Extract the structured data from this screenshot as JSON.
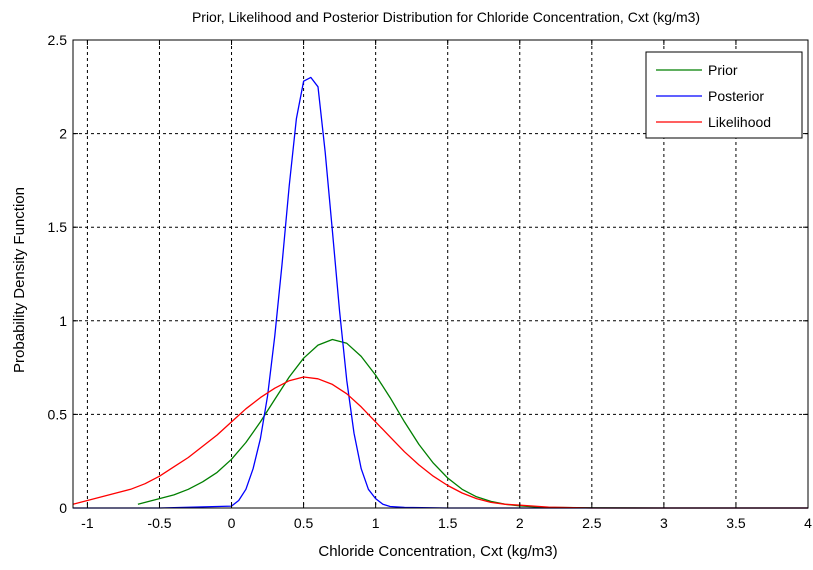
{
  "chart_data": {
    "type": "line",
    "title": "Prior, Likelihood and Posterior Distribution for Chloride Concentration, Cxt (kg/m3)",
    "xlabel": "Chloride Concentration, Cxt (kg/m3)",
    "ylabel": "Probability Density Function",
    "xlim": [
      -1.1,
      4
    ],
    "ylim": [
      0,
      2.5
    ],
    "xticks": [
      -1,
      -0.5,
      0,
      0.5,
      1,
      1.5,
      2,
      2.5,
      3,
      3.5,
      4
    ],
    "xtick_labels": [
      "-1",
      "-0.5",
      "0",
      "0.5",
      "1",
      "1.5",
      "2",
      "2.5",
      "3",
      "3.5",
      "4"
    ],
    "yticks": [
      0,
      0.5,
      1,
      1.5,
      2,
      2.5
    ],
    "ytick_labels": [
      "0",
      "0.5",
      "1",
      "1.5",
      "2",
      "2.5"
    ],
    "grid": true,
    "legend_position": "top-right",
    "series": [
      {
        "name": "Prior",
        "color": "#007f00",
        "x": [
          -0.65,
          -0.5,
          -0.4,
          -0.3,
          -0.2,
          -0.1,
          0,
          0.1,
          0.2,
          0.3,
          0.4,
          0.5,
          0.6,
          0.7,
          0.8,
          0.9,
          1.0,
          1.1,
          1.2,
          1.3,
          1.4,
          1.5,
          1.6,
          1.7,
          1.8,
          1.9,
          2.0,
          2.1,
          2.2,
          2.5,
          3.0,
          3.5,
          4.0
        ],
        "y": [
          0.02,
          0.05,
          0.07,
          0.1,
          0.14,
          0.19,
          0.26,
          0.35,
          0.46,
          0.58,
          0.7,
          0.8,
          0.87,
          0.9,
          0.88,
          0.81,
          0.71,
          0.59,
          0.46,
          0.34,
          0.24,
          0.16,
          0.1,
          0.06,
          0.035,
          0.02,
          0.012,
          0.006,
          0.003,
          0.001,
          0.0,
          0.0,
          0.0
        ]
      },
      {
        "name": "Posterior",
        "color": "#0000ff",
        "x": [
          -1.1,
          -0.5,
          0.0,
          0.05,
          0.1,
          0.15,
          0.2,
          0.25,
          0.3,
          0.35,
          0.4,
          0.45,
          0.5,
          0.55,
          0.6,
          0.65,
          0.7,
          0.75,
          0.8,
          0.85,
          0.9,
          0.95,
          1.0,
          1.05,
          1.1,
          1.2,
          1.5,
          2.0,
          3.0,
          4.0
        ],
        "y": [
          0,
          0,
          0.01,
          0.04,
          0.1,
          0.21,
          0.37,
          0.6,
          0.92,
          1.3,
          1.72,
          2.08,
          2.28,
          2.3,
          2.25,
          1.9,
          1.48,
          1.05,
          0.68,
          0.4,
          0.21,
          0.1,
          0.05,
          0.02,
          0.008,
          0.003,
          0.0,
          0.0,
          0.0,
          0.0
        ]
      },
      {
        "name": "Likelihood",
        "color": "#ff0000",
        "x": [
          -1.1,
          -1.0,
          -0.9,
          -0.8,
          -0.7,
          -0.6,
          -0.5,
          -0.4,
          -0.3,
          -0.2,
          -0.1,
          0,
          0.1,
          0.2,
          0.3,
          0.4,
          0.5,
          0.6,
          0.7,
          0.8,
          0.9,
          1.0,
          1.1,
          1.2,
          1.3,
          1.4,
          1.5,
          1.6,
          1.7,
          1.8,
          1.9,
          2.0,
          2.1,
          2.2,
          2.5,
          3.0,
          3.5,
          4.0
        ],
        "y": [
          0.02,
          0.04,
          0.06,
          0.08,
          0.1,
          0.13,
          0.17,
          0.22,
          0.27,
          0.33,
          0.39,
          0.46,
          0.53,
          0.59,
          0.64,
          0.68,
          0.7,
          0.69,
          0.66,
          0.61,
          0.54,
          0.46,
          0.38,
          0.3,
          0.23,
          0.17,
          0.12,
          0.08,
          0.05,
          0.03,
          0.02,
          0.015,
          0.01,
          0.005,
          0.0,
          0.0,
          0.0,
          0.0
        ]
      }
    ]
  }
}
